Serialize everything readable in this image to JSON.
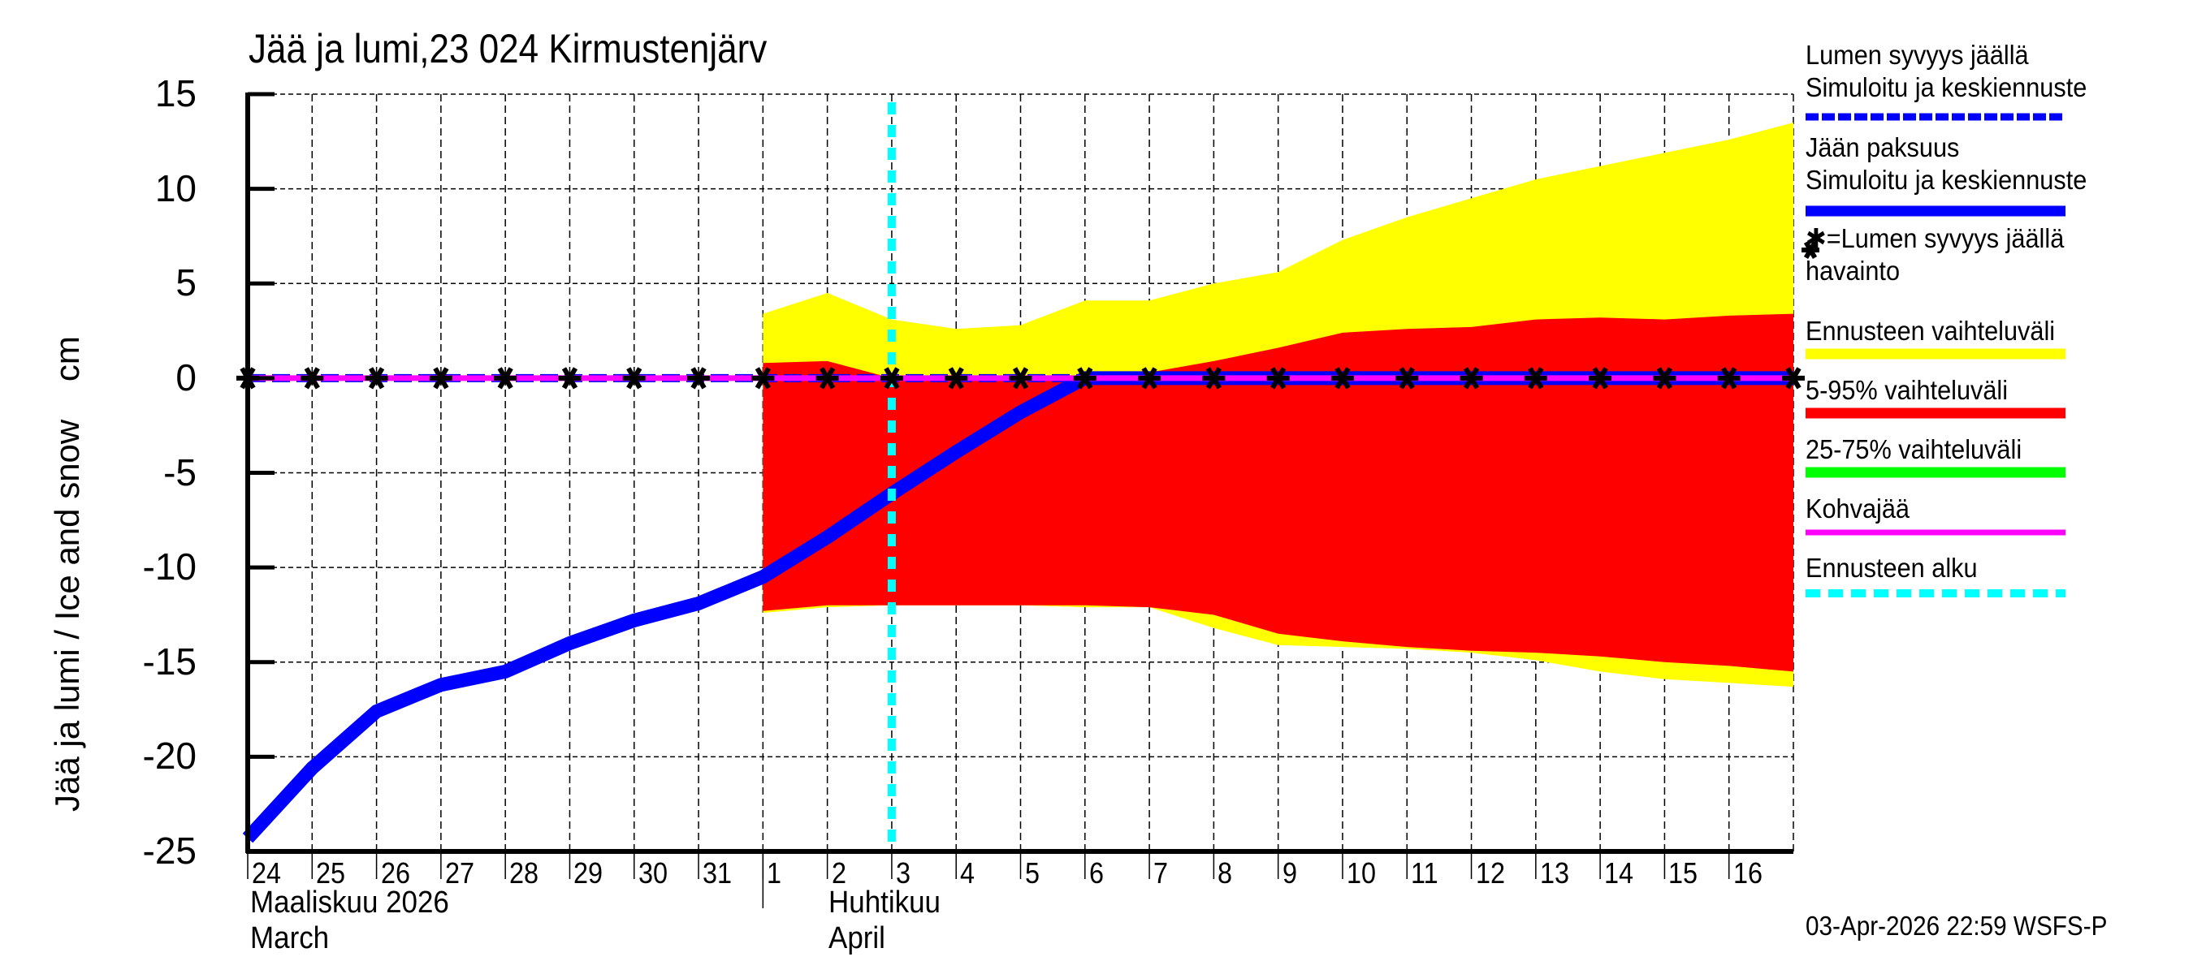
{
  "title": "Jää ja lumi,23 024 Kirmustenjärv",
  "y_axis_label": "Jää ja lumi / Ice and snow    cm",
  "footer": "03-Apr-2026 22:59 WSFS-P",
  "months": [
    {
      "fi": "Maaliskuu 2026",
      "en": "March"
    },
    {
      "fi": "Huhtikuu",
      "en": "April"
    }
  ],
  "legend": [
    {
      "line1": "Lumen syvyys jäällä",
      "line2": "Simuloitu ja keskiennuste",
      "swatch": "dashed",
      "color": "#0000ff"
    },
    {
      "line1": "Jään paksuus",
      "line2": "Simuloitu ja keskiennuste",
      "swatch": "solid-thick",
      "color": "#0000ff"
    },
    {
      "line1": "✱=Lumen syvyys jäällä",
      "line2": "havainto",
      "swatch": "none",
      "color": "#000000"
    },
    {
      "line1": "Ennusteen vaihteluväli",
      "line2": "",
      "swatch": "solid",
      "color": "#ffff00"
    },
    {
      "line1": "5-95% vaihteluväli",
      "line2": "",
      "swatch": "solid",
      "color": "#ff0000"
    },
    {
      "line1": "25-75% vaihteluväli",
      "line2": "",
      "swatch": "solid",
      "color": "#00ff00"
    },
    {
      "line1": "Kohvajää",
      "line2": "",
      "swatch": "solid-thin",
      "color": "#ff00ff"
    },
    {
      "line1": "Ennusteen alku",
      "line2": "",
      "swatch": "dashed-cyan",
      "color": "#00ffff"
    }
  ],
  "colors": {
    "ice": "#0000ff",
    "snow": "#0000ff",
    "forecast_range": "#ffff00",
    "range_5_95": "#ff0000",
    "range_25_75": "#00ff00",
    "slush_ice": "#ff00ff",
    "forecast_start": "#00ffff",
    "observation": "#000000"
  },
  "chart_data": {
    "type": "area",
    "title": "Jää ja lumi,23 024 Kirmustenjärv",
    "xlabel": "Maaliskuu 2026 / March — Huhtikuu / April",
    "ylabel": "Jää ja lumi / Ice and snow    cm",
    "ylim": [
      -25,
      15
    ],
    "yticks": [
      15,
      10,
      5,
      0,
      -5,
      -10,
      -15,
      -20,
      -25
    ],
    "grid": true,
    "legend_position": "right",
    "x": [
      "24",
      "25",
      "26",
      "27",
      "28",
      "29",
      "30",
      "31",
      "1",
      "2",
      "3",
      "4",
      "5",
      "6",
      "7",
      "8",
      "9",
      "10",
      "11",
      "12",
      "13",
      "14",
      "15",
      "16",
      "17"
    ],
    "x_tick_labels": [
      "24",
      "25",
      "26",
      "27",
      "28",
      "29",
      "30",
      "31",
      "1",
      "2",
      "3",
      "4",
      "5",
      "6",
      "7",
      "8",
      "9",
      "10",
      "11",
      "12",
      "13",
      "14",
      "15",
      "16"
    ],
    "forecast_start_index": 10,
    "forecast_start_label": "3",
    "series": [
      {
        "name": "Jään paksuus (Simuloitu ja keskiennuste)",
        "style": "line",
        "values": [
          -24.3,
          -20.6,
          -17.6,
          -16.2,
          -15.5,
          -14.0,
          -12.8,
          -11.9,
          -10.5,
          -8.4,
          -6.1,
          -3.9,
          -1.8,
          0,
          0,
          0,
          0,
          0,
          0,
          0,
          0,
          0,
          0,
          0,
          0
        ]
      },
      {
        "name": "Lumen syvyys jäällä (Simuloitu ja keskiennuste)",
        "style": "dashed-line",
        "values": [
          0,
          0,
          0,
          0,
          0,
          0,
          0,
          0,
          0,
          0,
          0,
          0,
          0,
          0,
          0,
          0,
          0,
          0,
          0,
          0,
          0,
          0,
          0,
          0,
          0
        ]
      },
      {
        "name": "Lumen syvyys jäällä havainto",
        "style": "markers",
        "values": [
          0,
          0,
          0,
          0,
          0,
          0,
          0,
          0,
          0,
          0,
          0,
          0,
          0,
          0,
          0,
          0,
          0,
          0,
          0,
          0,
          0,
          0,
          0,
          0,
          0
        ]
      },
      {
        "name": "Kohvajää",
        "style": "line",
        "values": [
          0,
          0,
          0,
          0,
          0,
          0,
          0,
          0,
          0,
          0,
          0,
          0,
          0,
          0,
          0,
          0,
          0,
          0,
          0,
          0,
          0,
          0,
          0,
          0,
          0
        ]
      },
      {
        "name": "Ennusteen vaihteluväli (upper)",
        "style": "band-upper",
        "start_index": 8,
        "values": [
          3.4,
          4.5,
          3.1,
          2.6,
          2.8,
          4.1,
          4.1,
          5.0,
          5.6,
          7.3,
          8.5,
          9.5,
          10.5,
          11.2,
          11.9,
          12.6,
          13.5
        ]
      },
      {
        "name": "Ennusteen vaihteluväli (lower)",
        "style": "band-lower",
        "start_index": 8,
        "values": [
          -12.4,
          -12.1,
          -12.0,
          -12.0,
          -12.0,
          -12.1,
          -12.1,
          -13.2,
          -14.1,
          -14.2,
          -14.3,
          -14.5,
          -14.9,
          -15.5,
          -15.9,
          -16.1,
          -16.3
        ]
      },
      {
        "name": "5-95% vaihteluväli (upper)",
        "style": "band-upper",
        "start_index": 8,
        "values": [
          0.8,
          0.9,
          0.0,
          0.0,
          0.0,
          0.0,
          0.3,
          0.9,
          1.6,
          2.4,
          2.6,
          2.7,
          3.1,
          3.2,
          3.1,
          3.3,
          3.4
        ]
      },
      {
        "name": "5-95% vaihteluväli (lower)",
        "style": "band-lower",
        "start_index": 8,
        "values": [
          -12.3,
          -12.0,
          -12.0,
          -12.0,
          -12.0,
          -12.0,
          -12.1,
          -12.5,
          -13.5,
          -13.9,
          -14.2,
          -14.4,
          -14.5,
          -14.7,
          -15.0,
          -15.2,
          -15.5
        ]
      },
      {
        "name": "25-75% vaihteluväli",
        "style": "band",
        "values": []
      }
    ]
  }
}
